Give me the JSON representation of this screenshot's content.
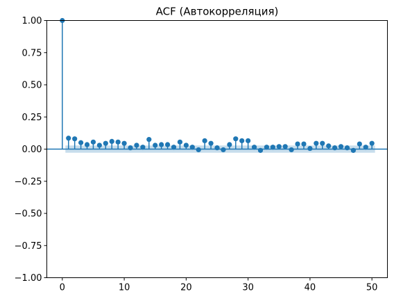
{
  "chart_data": {
    "type": "scatter",
    "title": "ACF (Автокорреляция)",
    "xlabel": "",
    "ylabel": "",
    "xlim": [
      -2.5,
      52.5
    ],
    "ylim": [
      -1.0,
      1.0
    ],
    "xticks": [
      0,
      10,
      20,
      30,
      40,
      50
    ],
    "xtick_labels": [
      "0",
      "10",
      "20",
      "30",
      "40",
      "50"
    ],
    "yticks": [
      -1.0,
      -0.75,
      -0.5,
      -0.25,
      0.0,
      0.25,
      0.5,
      0.75,
      1.0
    ],
    "ytick_labels": [
      "−1.00",
      "−0.75",
      "−0.50",
      "−0.25",
      "0.00",
      "0.25",
      "0.50",
      "0.75",
      "1.00"
    ],
    "grid": false,
    "lags": [
      0,
      1,
      2,
      3,
      4,
      5,
      6,
      7,
      8,
      9,
      10,
      11,
      12,
      13,
      14,
      15,
      16,
      17,
      18,
      19,
      20,
      21,
      22,
      23,
      24,
      25,
      26,
      27,
      28,
      29,
      30,
      31,
      32,
      33,
      34,
      35,
      36,
      37,
      38,
      39,
      40,
      41,
      42,
      43,
      44,
      45,
      46,
      47,
      48,
      49,
      50
    ],
    "acf": [
      1.0,
      0.085,
      0.08,
      0.05,
      0.035,
      0.055,
      0.03,
      0.045,
      0.06,
      0.055,
      0.045,
      0.01,
      0.03,
      0.015,
      0.075,
      0.03,
      0.035,
      0.035,
      0.015,
      0.055,
      0.03,
      0.015,
      -0.005,
      0.065,
      0.045,
      0.01,
      -0.005,
      0.035,
      0.08,
      0.065,
      0.065,
      0.015,
      -0.01,
      0.015,
      0.015,
      0.02,
      0.02,
      -0.005,
      0.04,
      0.04,
      0.005,
      0.045,
      0.045,
      0.025,
      0.01,
      0.02,
      0.01,
      -0.01,
      0.04,
      0.015,
      0.045
    ],
    "confidence_band": {
      "lag_start": 0.5,
      "lag_end": 50.5,
      "lower": -0.028,
      "upper": 0.028
    },
    "colors": {
      "stem": "#1f77b4",
      "marker": "#1f77b4",
      "band": "#1f77b4",
      "band_opacity": 0.25,
      "zero_line": "#1f77b4"
    }
  }
}
